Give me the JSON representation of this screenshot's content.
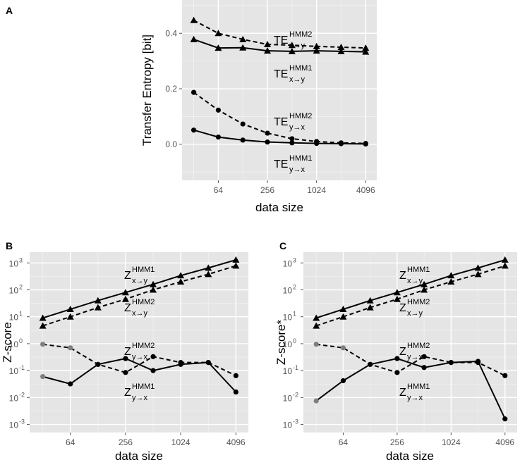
{
  "chart_data": [
    {
      "panel": "A",
      "type": "line",
      "xlabel": "data size",
      "ylabel": "Transfer Entropy [bit]",
      "x": [
        32,
        64,
        128,
        256,
        512,
        1024,
        2048,
        4096
      ],
      "xticks": [
        "64",
        "256",
        "1024",
        "4096"
      ],
      "yticks": [
        "0.0",
        "0.2",
        "0.4"
      ],
      "ylim": [
        -0.13,
        0.52
      ],
      "series": [
        {
          "name": "TE HMM2 x→y",
          "label_main": "TE",
          "label_sup": "HMM2",
          "label_sub": "x→y",
          "style": "dashed",
          "marker": "triangle",
          "values": [
            0.447,
            0.4,
            0.378,
            0.36,
            0.357,
            0.353,
            0.35,
            0.347
          ]
        },
        {
          "name": "TE HMM1 x→y",
          "label_main": "TE",
          "label_sup": "HMM1",
          "label_sub": "x→y",
          "style": "solid",
          "marker": "triangle",
          "values": [
            0.378,
            0.347,
            0.348,
            0.337,
            0.335,
            0.337,
            0.335,
            0.333
          ]
        },
        {
          "name": "TE HMM2 y→x",
          "label_main": "TE",
          "label_sup": "HMM2",
          "label_sub": "y→x",
          "style": "dashed",
          "marker": "circle",
          "values": [
            0.187,
            0.123,
            0.073,
            0.04,
            0.02,
            0.01,
            0.005,
            0.003
          ]
        },
        {
          "name": "TE HMM1 y→x",
          "label_main": "TE",
          "label_sup": "HMM1",
          "label_sub": "y→x",
          "style": "solid",
          "marker": "circle",
          "values": [
            0.051,
            0.026,
            0.015,
            0.008,
            0.005,
            0.003,
            0.002,
            0.001
          ]
        }
      ]
    },
    {
      "panel": "B",
      "type": "line",
      "xlabel": "data size",
      "ylabel": "Z-score",
      "x": [
        32,
        64,
        128,
        256,
        512,
        1024,
        2048,
        4096
      ],
      "xticks": [
        "64",
        "256",
        "1024",
        "4096"
      ],
      "yticks": [
        "10",
        "10",
        "10",
        "10",
        "10"
      ],
      "ytick_exponents": [
        "-3",
        "-2",
        "-1",
        "0",
        "1",
        "2",
        "3"
      ],
      "ylim_log10": [
        -3.3,
        3.4
      ],
      "series": [
        {
          "name": "Z HMM1 x→y",
          "label_main": "Z",
          "label_sup": "HMM1",
          "label_sub": "x→y",
          "style": "solid",
          "marker": "triangle",
          "values": [
            9,
            19,
            40,
            80,
            160,
            340,
            650,
            1300
          ]
        },
        {
          "name": "Z HMM2 x→y",
          "label_main": "Z",
          "label_sup": "HMM2",
          "label_sub": "x→y",
          "style": "dashed",
          "marker": "triangle",
          "values": [
            4.6,
            10,
            22,
            45,
            100,
            200,
            380,
            780
          ]
        },
        {
          "name": "Z HMM2 y→x",
          "label_main": "Z",
          "label_sup": "HMM2",
          "label_sub": "y→x",
          "style": "dashed",
          "marker": "circle",
          "values": [
            0.95,
            0.7,
            0.17,
            0.085,
            0.33,
            0.2,
            0.2,
            0.065
          ],
          "grey_points": [
            0,
            1
          ]
        },
        {
          "name": "Z HMM1 y→x",
          "label_main": "Z",
          "label_sup": "HMM1",
          "label_sub": "y→x",
          "style": "solid",
          "marker": "circle",
          "values": [
            0.06,
            0.032,
            0.17,
            0.28,
            0.1,
            0.17,
            0.2,
            0.016
          ],
          "grey_points": [
            0
          ]
        }
      ]
    },
    {
      "panel": "C",
      "type": "line",
      "xlabel": "data size",
      "ylabel": "Z-score*",
      "x": [
        32,
        64,
        128,
        256,
        512,
        1024,
        2048,
        4096
      ],
      "xticks": [
        "64",
        "256",
        "1024",
        "4096"
      ],
      "ytick_exponents": [
        "-3",
        "-2",
        "-1",
        "0",
        "1",
        "2",
        "3"
      ],
      "ylim_log10": [
        -3.3,
        3.4
      ],
      "series": [
        {
          "name": "Z HMM1 x→y",
          "label_main": "Z",
          "label_sup": "HMM1",
          "label_sub": "x→y",
          "style": "solid",
          "marker": "triangle",
          "values": [
            9,
            19,
            40,
            80,
            160,
            340,
            650,
            1300
          ]
        },
        {
          "name": "Z HMM2 x→y",
          "label_main": "Z",
          "label_sup": "HMM2",
          "label_sub": "x→y",
          "style": "dashed",
          "marker": "triangle",
          "values": [
            4.6,
            10,
            22,
            45,
            100,
            200,
            380,
            780
          ]
        },
        {
          "name": "Z HMM2 y→x",
          "label_main": "Z",
          "label_sup": "HMM2",
          "label_sub": "y→x",
          "style": "dashed",
          "marker": "circle",
          "values": [
            0.95,
            0.7,
            0.17,
            0.085,
            0.33,
            0.2,
            0.2,
            0.065
          ],
          "grey_points": [
            0,
            1
          ]
        },
        {
          "name": "Z HMM1 y→x",
          "label_main": "Z",
          "label_sup": "HMM1",
          "label_sub": "y→x",
          "style": "solid",
          "marker": "circle",
          "values": [
            0.0075,
            0.042,
            0.17,
            0.28,
            0.13,
            0.2,
            0.22,
            0.0016
          ],
          "grey_points": [
            0
          ]
        }
      ]
    }
  ],
  "colors": {
    "panel_bg": "#e5e5e5",
    "grid_major": "#ffffff",
    "grid_minor": "#f2f2f2",
    "line": "#000000",
    "grey_point": "#7f7f7f",
    "tick_text": "#555555"
  }
}
